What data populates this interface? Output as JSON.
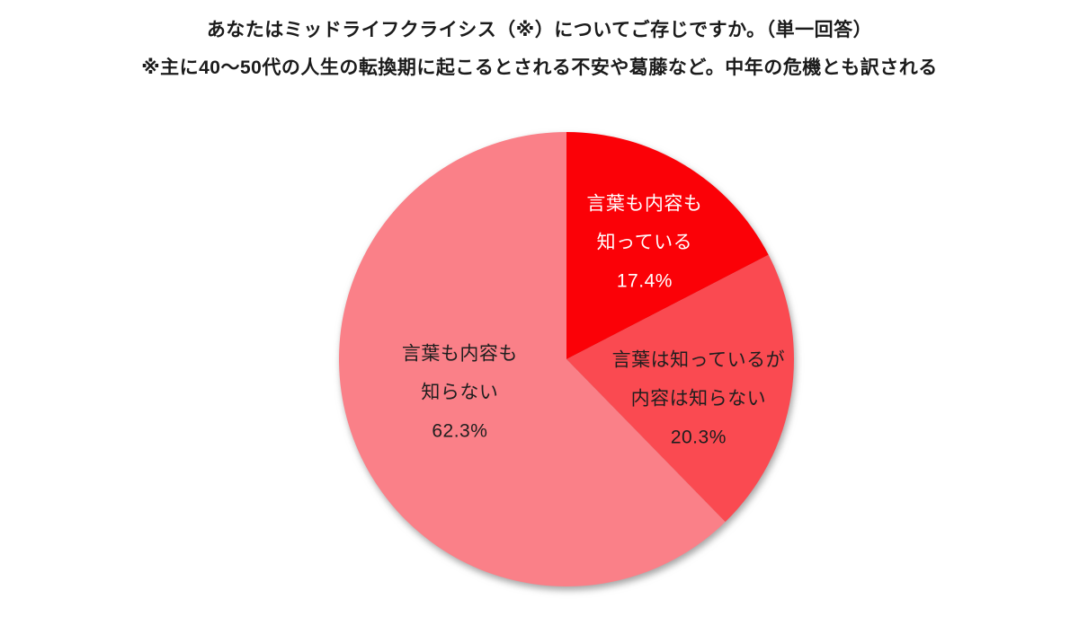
{
  "chart_data": {
    "type": "pie",
    "title": "あなたはミッドライフクライシス（※）についてご存じですか。（単一回答）",
    "subtitle": "※主に40～50代の人生の転換期に起こるとされる不安や葛藤など。中年の危機とも訳される",
    "legend": "none",
    "start_angle_deg": 0,
    "direction": "clockwise",
    "label_radius_frac": 0.6,
    "total": 100.0,
    "slices": [
      {
        "label": "言葉も内容も知っている",
        "lines": [
          "言葉も内容も",
          "知っている"
        ],
        "value": 17.4,
        "pct_label": "17.4%",
        "color": "#FB0107",
        "text_color": "#FFFFFF",
        "label_offset": [
          8,
          0
        ]
      },
      {
        "label": "言葉は知っているが内容は知らない",
        "lines": [
          "言葉は知っているが",
          "内容は知らない"
        ],
        "value": 20.3,
        "pct_label": "20.3%",
        "color": "#FA4A51",
        "text_color": "#1E1E1E",
        "label_offset": [
          -3,
          20
        ]
      },
      {
        "label": "言葉も内容も知らない",
        "lines": [
          "言葉も内容も",
          "知らない"
        ],
        "value": 62.3,
        "pct_label": "62.3%",
        "color": "#FA8088",
        "text_color": "#1E1E1E",
        "label_offset": [
          22,
          -20
        ]
      }
    ]
  }
}
